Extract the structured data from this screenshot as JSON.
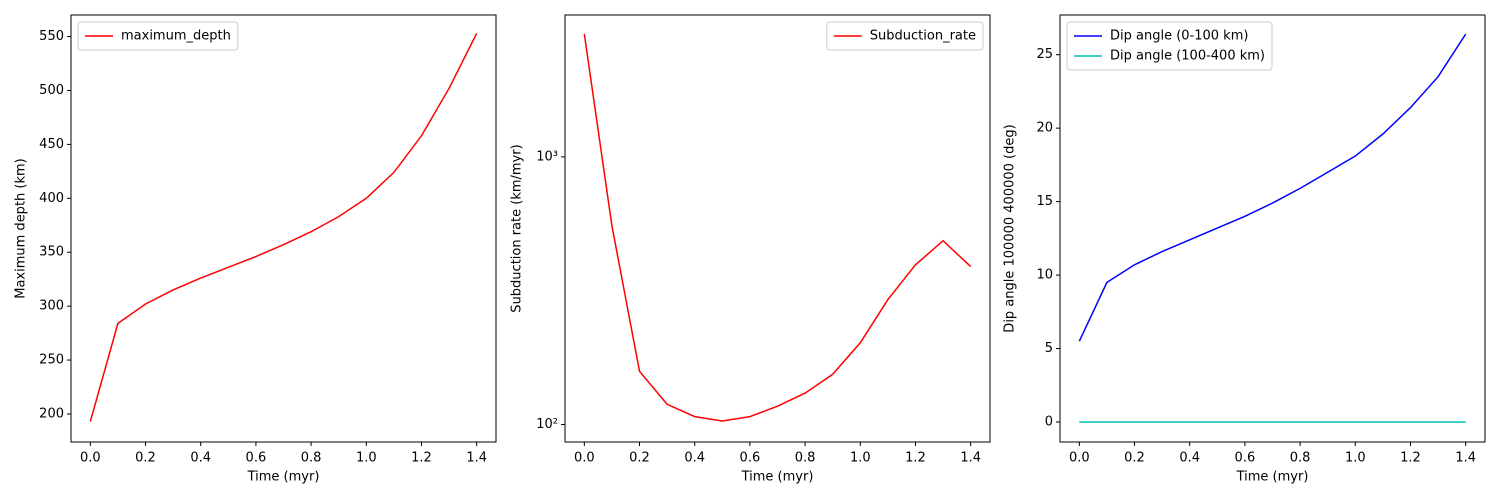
{
  "chart_data": [
    {
      "type": "line",
      "x_label": "Time (myr)",
      "y_label": "Maximum depth (km)",
      "x": [
        0,
        0.1,
        0.2,
        0.3,
        0.4,
        0.5,
        0.6,
        0.7,
        0.8,
        0.9,
        1.0,
        1.1,
        1.2,
        1.3,
        1.4
      ],
      "series": [
        {
          "name": "maximum_depth",
          "color": "#ff0000",
          "values": [
            193,
            284,
            302,
            315,
            326,
            336,
            346,
            357,
            369,
            383,
            400,
            424,
            458,
            502,
            553
          ]
        }
      ],
      "xlim": [
        -0.07,
        1.47
      ],
      "xticks": [
        {
          "value": 0,
          "label": "0.0"
        },
        0.2,
        0.4,
        0.6,
        0.8,
        {
          "value": 1,
          "label": "1.0"
        },
        1.2,
        1.4
      ],
      "ylim": [
        174,
        570
      ],
      "yticks": [
        200,
        250,
        300,
        350,
        400,
        450,
        500,
        550
      ],
      "log_y": false,
      "legend": "upper-left"
    },
    {
      "type": "line",
      "x_label": "Time (myr)",
      "y_label": "Subduction rate (km/myr)",
      "x": [
        0,
        0.1,
        0.2,
        0.3,
        0.4,
        0.5,
        0.6,
        0.7,
        0.8,
        0.9,
        1.0,
        1.1,
        1.2,
        1.3,
        1.4
      ],
      "series": [
        {
          "name": "Subduction_rate",
          "color": "#ff0000",
          "values": [
            2880,
            553,
            158,
            119,
            107,
            103,
            107,
            117,
            131,
            154,
            202,
            293,
            395,
            486,
            389
          ]
        }
      ],
      "xlim": [
        -0.07,
        1.47
      ],
      "xticks": [
        {
          "value": 0,
          "label": "0.0"
        },
        0.2,
        0.4,
        0.6,
        0.8,
        {
          "value": 1,
          "label": "1.0"
        },
        1.2,
        1.4
      ],
      "ylim": [
        86,
        3390
      ],
      "yticks": [
        {
          "value": 100,
          "label": "10²"
        },
        {
          "value": 1000,
          "label": "10³"
        }
      ],
      "log_y": true,
      "legend": "upper-right"
    },
    {
      "type": "line",
      "x_label": "Time (myr)",
      "y_label": "Dip angle 100000 400000 (deg)",
      "x": [
        0,
        0.1,
        0.2,
        0.3,
        0.4,
        0.5,
        0.6,
        0.7,
        0.8,
        0.9,
        1.0,
        1.1,
        1.2,
        1.3,
        1.4
      ],
      "series": [
        {
          "name": "Dip angle (0-100 km)",
          "color": "#0000ff",
          "values": [
            5.5,
            9.5,
            10.7,
            11.6,
            12.4,
            13.2,
            14.0,
            14.9,
            15.9,
            17.0,
            18.1,
            19.6,
            21.4,
            23.5,
            26.4
          ]
        },
        {
          "name": "Dip angle (100-400 km)",
          "color": "#00bfbf",
          "values": [
            0,
            0,
            0,
            0,
            0,
            0,
            0,
            0,
            0,
            0,
            0,
            0,
            0,
            0,
            0
          ]
        }
      ],
      "xlim": [
        -0.07,
        1.47
      ],
      "xticks": [
        {
          "value": 0,
          "label": "0.0"
        },
        0.2,
        0.4,
        0.6,
        0.8,
        {
          "value": 1,
          "label": "1.0"
        },
        1.2,
        1.4
      ],
      "ylim": [
        -1.36,
        27.7
      ],
      "yticks": [
        0,
        5,
        10,
        15,
        20,
        25
      ],
      "log_y": false,
      "legend": "upper-left"
    }
  ]
}
